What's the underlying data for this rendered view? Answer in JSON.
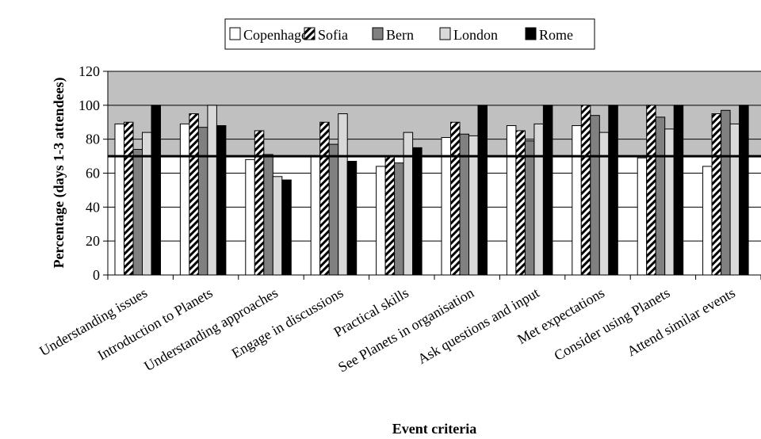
{
  "chart_data": {
    "type": "bar",
    "title": "",
    "xlabel": "Event criteria",
    "ylabel": "Percentage (days 1-3 attendees)",
    "ylim": [
      0,
      120
    ],
    "yticks": [
      0,
      20,
      40,
      60,
      80,
      100,
      120
    ],
    "reference_line": 70,
    "highlight_band": [
      70,
      120
    ],
    "grid": true,
    "legend_position": "top",
    "categories": [
      "Understanding issues",
      "Introduction to Planets",
      "Understanding approaches",
      "Engage in discussions",
      "Practical skills",
      "See Planets in organisation",
      "Ask questions and input",
      "Met expectations",
      "Consider using Planets",
      "Attend similar events"
    ],
    "series": [
      {
        "name": "Copenhagen",
        "pattern": "white",
        "values": [
          89,
          89,
          68,
          70,
          64,
          81,
          88,
          88,
          69,
          64
        ]
      },
      {
        "name": "Sofia",
        "pattern": "hatch",
        "values": [
          90,
          95,
          85,
          90,
          70,
          90,
          85,
          100,
          100,
          95
        ]
      },
      {
        "name": "Bern",
        "pattern": "darkgray",
        "values": [
          74,
          87,
          71,
          77,
          66,
          83,
          79,
          94,
          93,
          97
        ]
      },
      {
        "name": "London",
        "pattern": "lightgray",
        "values": [
          84,
          100,
          58,
          95,
          84,
          82,
          89,
          84,
          86,
          89
        ]
      },
      {
        "name": "Rome",
        "pattern": "black",
        "values": [
          100,
          88,
          56,
          67,
          75,
          100,
          100,
          100,
          100,
          100
        ]
      }
    ],
    "colors": {
      "white": "#ffffff",
      "darkgray": "#808080",
      "lightgray": "#d9d9d9",
      "black": "#000000",
      "band": "#c0c0c0",
      "plot_bg": "#ffffff"
    }
  }
}
